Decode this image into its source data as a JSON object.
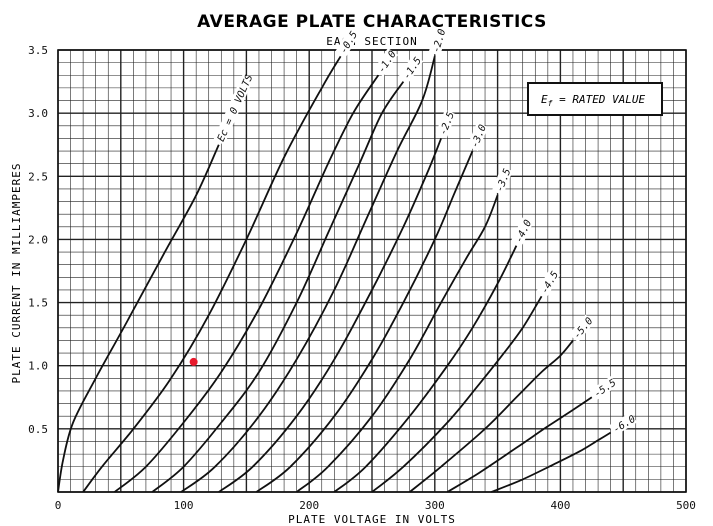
{
  "chart_data": {
    "type": "line",
    "title": "AVERAGE PLATE CHARACTERISTICS",
    "subtitle": "EACH SECTION",
    "xlabel": "PLATE VOLTAGE IN VOLTS",
    "ylabel": "PLATE CURRENT IN MILLIAMPERES",
    "xlim": [
      0,
      500
    ],
    "ylim": [
      0,
      3.5
    ],
    "x_ticks": [
      "0",
      "100",
      "200",
      "300",
      "400",
      "500"
    ],
    "y_ticks": [
      "0.5",
      "1.0",
      "1.5",
      "2.0",
      "2.5",
      "3.0",
      "3.5"
    ],
    "grid": true,
    "annotation": {
      "symbol": "E",
      "subscript": "f",
      "text": " = RATED VALUE"
    },
    "highlight_point": {
      "x": 108,
      "y": 1.03,
      "color": "#e8192c"
    },
    "line_color": "#111111",
    "series": [
      {
        "name": "Ec = 0 VOLTS",
        "points": [
          [
            0,
            0
          ],
          [
            4,
            0.25
          ],
          [
            12,
            0.55
          ],
          [
            30,
            0.9
          ],
          [
            55,
            1.35
          ],
          [
            85,
            1.9
          ],
          [
            110,
            2.35
          ],
          [
            128,
            2.75
          ]
        ]
      },
      {
        "name": "-0.5",
        "points": [
          [
            20,
            0
          ],
          [
            35,
            0.2
          ],
          [
            60,
            0.5
          ],
          [
            90,
            0.9
          ],
          [
            120,
            1.4
          ],
          [
            150,
            2.0
          ],
          [
            180,
            2.65
          ],
          [
            210,
            3.2
          ],
          [
            225,
            3.45
          ]
        ]
      },
      {
        "name": "-1.0",
        "points": [
          [
            45,
            0
          ],
          [
            70,
            0.2
          ],
          [
            100,
            0.55
          ],
          [
            130,
            0.95
          ],
          [
            160,
            1.45
          ],
          [
            190,
            2.05
          ],
          [
            215,
            2.6
          ],
          [
            235,
            3.0
          ],
          [
            255,
            3.3
          ]
        ]
      },
      {
        "name": "-1.5",
        "points": [
          [
            75,
            0
          ],
          [
            100,
            0.2
          ],
          [
            130,
            0.55
          ],
          [
            160,
            0.95
          ],
          [
            190,
            1.5
          ],
          [
            215,
            2.05
          ],
          [
            240,
            2.6
          ],
          [
            258,
            3.0
          ],
          [
            275,
            3.25
          ]
        ]
      },
      {
        "name": "-2.0",
        "points": [
          [
            98,
            0
          ],
          [
            125,
            0.2
          ],
          [
            160,
            0.6
          ],
          [
            190,
            1.05
          ],
          [
            220,
            1.6
          ],
          [
            245,
            2.15
          ],
          [
            270,
            2.7
          ],
          [
            290,
            3.1
          ],
          [
            300,
            3.45
          ]
        ]
      },
      {
        "name": "-2.5",
        "points": [
          [
            128,
            0
          ],
          [
            155,
            0.2
          ],
          [
            190,
            0.6
          ],
          [
            220,
            1.05
          ],
          [
            250,
            1.6
          ],
          [
            275,
            2.1
          ],
          [
            295,
            2.55
          ],
          [
            305,
            2.8
          ]
        ]
      },
      {
        "name": "-3.0",
        "points": [
          [
            158,
            0
          ],
          [
            185,
            0.2
          ],
          [
            220,
            0.6
          ],
          [
            250,
            1.05
          ],
          [
            275,
            1.5
          ],
          [
            300,
            2.0
          ],
          [
            315,
            2.35
          ],
          [
            330,
            2.7
          ]
        ]
      },
      {
        "name": "-3.5",
        "points": [
          [
            190,
            0
          ],
          [
            215,
            0.2
          ],
          [
            250,
            0.6
          ],
          [
            280,
            1.05
          ],
          [
            305,
            1.5
          ],
          [
            325,
            1.85
          ],
          [
            340,
            2.1
          ],
          [
            350,
            2.35
          ]
        ]
      },
      {
        "name": "-4.0",
        "points": [
          [
            220,
            0
          ],
          [
            245,
            0.2
          ],
          [
            280,
            0.6
          ],
          [
            310,
            1.0
          ],
          [
            330,
            1.3
          ],
          [
            350,
            1.65
          ],
          [
            365,
            1.95
          ]
        ]
      },
      {
        "name": "-4.5",
        "points": [
          [
            250,
            0
          ],
          [
            275,
            0.2
          ],
          [
            310,
            0.55
          ],
          [
            335,
            0.85
          ],
          [
            355,
            1.1
          ],
          [
            370,
            1.3
          ],
          [
            385,
            1.55
          ]
        ]
      },
      {
        "name": "-5.0",
        "points": [
          [
            280,
            0
          ],
          [
            305,
            0.2
          ],
          [
            340,
            0.5
          ],
          [
            365,
            0.75
          ],
          [
            385,
            0.95
          ],
          [
            400,
            1.08
          ],
          [
            410,
            1.2
          ]
        ]
      },
      {
        "name": "-5.5",
        "points": [
          [
            310,
            0
          ],
          [
            335,
            0.15
          ],
          [
            365,
            0.35
          ],
          [
            390,
            0.52
          ],
          [
            410,
            0.65
          ],
          [
            425,
            0.75
          ]
        ]
      },
      {
        "name": "-6.0",
        "points": [
          [
            345,
            0
          ],
          [
            370,
            0.1
          ],
          [
            395,
            0.22
          ],
          [
            415,
            0.32
          ],
          [
            430,
            0.41
          ],
          [
            440,
            0.47
          ]
        ]
      }
    ]
  }
}
